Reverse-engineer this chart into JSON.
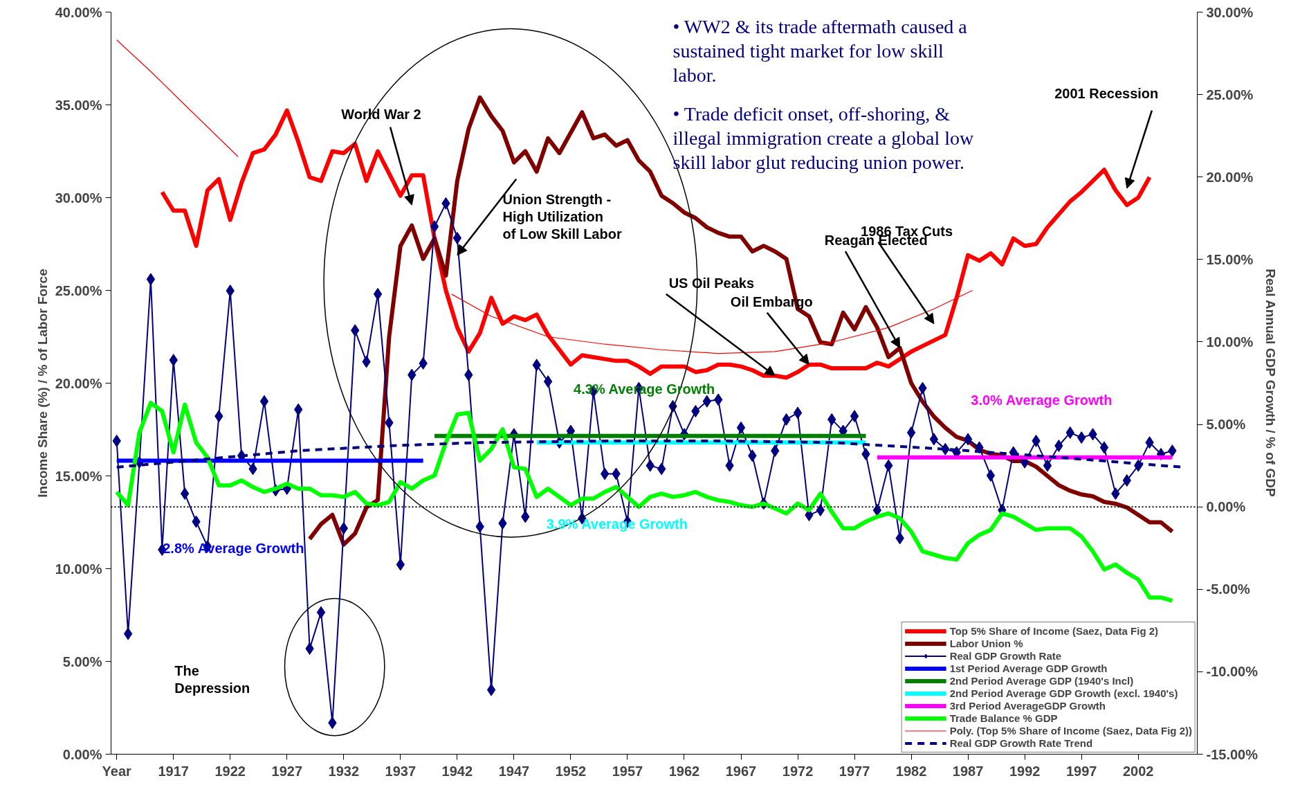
{
  "chart_data": {
    "type": "line",
    "ylabel": "Income Share (%) / % of Labor Force",
    "y2label": "Real Annual GDP Growth / % of GDP",
    "x": [
      1912,
      1913,
      1914,
      1915,
      1916,
      1917,
      1918,
      1919,
      1920,
      1921,
      1922,
      1923,
      1924,
      1925,
      1926,
      1927,
      1928,
      1929,
      1930,
      1931,
      1932,
      1933,
      1934,
      1935,
      1936,
      1937,
      1938,
      1939,
      1940,
      1941,
      1942,
      1943,
      1944,
      1945,
      1946,
      1947,
      1948,
      1949,
      1950,
      1951,
      1952,
      1953,
      1954,
      1955,
      1956,
      1957,
      1958,
      1959,
      1960,
      1961,
      1962,
      1963,
      1964,
      1965,
      1966,
      1967,
      1968,
      1969,
      1970,
      1971,
      1972,
      1973,
      1974,
      1975,
      1976,
      1977,
      1978,
      1979,
      1980,
      1981,
      1982,
      1983,
      1984,
      1985,
      1986,
      1987,
      1988,
      1989,
      1990,
      1991,
      1992,
      1993,
      1994,
      1995,
      1996,
      1997,
      1998,
      1999,
      2000,
      2001,
      2002,
      2003,
      2004,
      2005
    ],
    "xlim": [
      1911.5,
      2007.2
    ],
    "xticks": [
      {
        "value": 1912,
        "label": "Year"
      },
      1917,
      1922,
      1927,
      1932,
      1937,
      1942,
      1947,
      1952,
      1957,
      1962,
      1967,
      1972,
      1977,
      1982,
      1987,
      1992,
      1997,
      2002
    ],
    "ylim": [
      0,
      40
    ],
    "yticks": [
      {
        "value": 0,
        "label": "0.00%"
      },
      {
        "value": 5,
        "label": "5.00%"
      },
      {
        "value": 10,
        "label": "10.00%"
      },
      {
        "value": 15,
        "label": "15.00%"
      },
      {
        "value": 20,
        "label": "20.00%"
      },
      {
        "value": 25,
        "label": "25.00%"
      },
      {
        "value": 30,
        "label": "30.00%"
      },
      {
        "value": 35,
        "label": "35.00%"
      },
      {
        "value": 40,
        "label": "40.00%"
      }
    ],
    "y2lim": [
      -15,
      30
    ],
    "y2ticks": [
      {
        "value": -15,
        "label": "-15.00%"
      },
      {
        "value": -10,
        "label": "-10.00%"
      },
      {
        "value": -5,
        "label": "-5.00%"
      },
      {
        "value": 0,
        "label": "0.00%"
      },
      {
        "value": 5,
        "label": "5.00%"
      },
      {
        "value": 10,
        "label": "10.00%"
      },
      {
        "value": 15,
        "label": "15.00%"
      },
      {
        "value": 20,
        "label": "20.00%"
      },
      {
        "value": 25,
        "label": "25.00%"
      },
      {
        "value": 30,
        "label": "30.00%"
      }
    ],
    "grid": false,
    "legend": "bottom right",
    "series": [
      {
        "name": "Top 5% Share of Income (Saez, Data Fig 2)",
        "color": "#ff0000",
        "values": [
          null,
          null,
          null,
          null,
          30.3,
          29.3,
          29.3,
          27.4,
          30.4,
          31.0,
          28.8,
          30.8,
          32.4,
          32.6,
          33.4,
          34.7,
          33.0,
          31.1,
          30.9,
          32.5,
          32.4,
          32.9,
          30.9,
          32.5,
          31.3,
          30.1,
          31.2,
          31.2,
          27.8,
          25.0,
          23.0,
          21.7,
          22.7,
          24.6,
          23.2,
          23.6,
          23.4,
          23.7,
          22.6,
          21.8,
          21.0,
          21.5,
          21.4,
          21.3,
          21.2,
          21.2,
          20.9,
          20.5,
          20.9,
          20.9,
          20.9,
          20.6,
          20.7,
          21.0,
          21.0,
          20.9,
          20.7,
          20.4,
          20.4,
          20.3,
          20.6,
          21.0,
          21.0,
          20.8,
          20.8,
          20.8,
          20.8,
          21.1,
          20.9,
          21.3,
          21.7,
          22.0,
          22.3,
          22.6,
          24.6,
          26.9,
          26.6,
          27.0,
          26.4,
          27.8,
          27.4,
          27.5,
          28.4,
          29.1,
          29.8,
          30.3,
          30.9,
          31.5,
          30.4,
          29.6,
          30.0,
          31.1,
          null,
          null
        ]
      },
      {
        "name": "Labor Union %",
        "color": "#800000",
        "values": [
          null,
          null,
          null,
          null,
          null,
          null,
          null,
          null,
          null,
          null,
          null,
          null,
          null,
          null,
          null,
          null,
          null,
          11.6,
          12.4,
          12.9,
          11.3,
          11.9,
          13.3,
          13.7,
          22.5,
          27.4,
          28.5,
          26.7,
          27.8,
          25.8,
          30.9,
          33.7,
          35.4,
          34.4,
          33.6,
          31.9,
          32.5,
          31.4,
          33.2,
          32.4,
          33.5,
          34.6,
          33.2,
          33.4,
          32.8,
          33.1,
          32.0,
          31.4,
          30.1,
          29.7,
          29.2,
          28.9,
          28.4,
          28.1,
          27.9,
          27.9,
          27.1,
          27.4,
          27.1,
          26.7,
          24.0,
          23.6,
          22.2,
          22.1,
          23.8,
          22.9,
          24.1,
          23.0,
          21.4,
          21.9,
          20.0,
          19.0,
          18.2,
          17.6,
          17.1,
          16.9,
          16.4,
          16.2,
          16.1,
          15.8,
          15.8,
          15.5,
          15.0,
          14.5,
          14.2,
          14.0,
          13.9,
          13.6,
          13.5,
          13.3,
          12.9,
          12.5,
          12.5,
          12.0
        ]
      },
      {
        "name": "Real GDP Growth Rate",
        "color": "#000080",
        "axis": "y2",
        "marker": "diamond",
        "values": [
          4.0,
          -7.7,
          2.7,
          13.8,
          -2.6,
          8.9,
          0.8,
          -0.9,
          -2.4,
          5.5,
          13.1,
          3.1,
          2.3,
          6.4,
          1.0,
          1.1,
          5.9,
          -8.6,
          -6.4,
          -13.1,
          -1.3,
          10.7,
          8.8,
          12.9,
          5.1,
          -3.5,
          8.0,
          8.7,
          17.0,
          18.4,
          16.3,
          8.0,
          -1.2,
          -11.1,
          -1.0,
          4.4,
          -0.6,
          8.6,
          7.6,
          3.9,
          4.6,
          -0.7,
          7.0,
          2.0,
          2.0,
          -0.9,
          7.2,
          2.5,
          2.3,
          6.1,
          4.4,
          5.8,
          6.4,
          6.5,
          2.5,
          4.8,
          3.1,
          0.2,
          3.4,
          5.3,
          5.7,
          -0.5,
          -0.2,
          5.3,
          4.6,
          5.5,
          3.2,
          -0.2,
          2.5,
          -1.9,
          4.5,
          7.2,
          4.1,
          3.5,
          3.3,
          4.1,
          3.6,
          1.9,
          -0.2,
          3.3,
          2.7,
          4.0,
          2.5,
          3.7,
          4.5,
          4.2,
          4.4,
          3.6,
          0.8,
          1.6,
          2.5,
          3.9,
          3.2,
          3.4
        ]
      },
      {
        "name": "1st Period Average GDP Growth",
        "color": "#0000ff",
        "axis": "y2",
        "x": [
          1912,
          1939
        ],
        "values": [
          2.8,
          2.8
        ]
      },
      {
        "name": "2nd Period Average GDP (1940's Incl)",
        "color": "#008000",
        "axis": "y2",
        "x": [
          1940,
          1978
        ],
        "values": [
          4.3,
          4.3
        ]
      },
      {
        "name": "2nd Period Average GDP Growth (excl. 1940's)",
        "color": "#00ffff",
        "axis": "y2",
        "x": [
          1949,
          1978
        ],
        "values": [
          3.9,
          3.9
        ]
      },
      {
        "name": "3rd Period AverageGDP Growth",
        "color": "#ff00ff",
        "axis": "y2",
        "x": [
          1979,
          2005
        ],
        "values": [
          3.0,
          3.0
        ]
      },
      {
        "name": "Trade Balance % GDP",
        "color": "#00ff00",
        "axis": "y2",
        "values": [
          0.9,
          0.1,
          4.5,
          6.3,
          5.8,
          3.3,
          6.2,
          3.9,
          3.0,
          1.3,
          1.3,
          1.6,
          1.2,
          0.9,
          1.1,
          1.4,
          1.1,
          1.1,
          0.7,
          0.7,
          0.6,
          0.9,
          0.2,
          0.1,
          0.3,
          1.5,
          1.1,
          1.6,
          1.9,
          3.9,
          5.6,
          5.7,
          2.8,
          3.5,
          4.7,
          2.4,
          2.3,
          0.6,
          1.1,
          0.6,
          0.1,
          0.5,
          0.5,
          0.9,
          1.2,
          0.6,
          0.0,
          0.6,
          0.8,
          0.6,
          0.7,
          0.9,
          0.6,
          0.4,
          0.3,
          0.1,
          0.0,
          0.2,
          -0.1,
          -0.4,
          0.2,
          -0.2,
          0.8,
          -0.3,
          -1.3,
          -1.3,
          -0.9,
          -0.6,
          -0.4,
          -0.7,
          -1.5,
          -2.7,
          -2.9,
          -3.1,
          -3.2,
          -2.2,
          -1.7,
          -1.4,
          -0.4,
          -0.6,
          -1.0,
          -1.4,
          -1.3,
          -1.3,
          -1.3,
          -1.8,
          -2.7,
          -3.8,
          -3.5,
          -4.0,
          -4.4,
          -5.5,
          -5.5,
          -5.7
        ]
      },
      {
        "name": "Poly. (Top 5% Share of Income (Saez, Data Fig 2))",
        "color": "#ff0000",
        "x": [
          1912,
          1915,
          1918,
          1922.7,
          1930,
          1941.5,
          1945,
          1950,
          1955,
          1960,
          1965,
          1970,
          1975,
          1980,
          1984,
          1987.4
        ],
        "values": [
          38.5,
          36.8,
          35.0,
          32.2,
          null,
          24.8,
          23.6,
          22.5,
          22.1,
          21.8,
          21.6,
          21.7,
          22.2,
          23.0,
          24.0,
          25.0
        ]
      },
      {
        "name": "Real GDP Growth Rate Trend",
        "color": "#000080",
        "axis": "y2",
        "line_style": "dashed",
        "x": [
          1912,
          1920,
          1928,
          1936,
          1944,
          1956,
          1965,
          1975,
          1985,
          1995,
          2006
        ],
        "values": [
          2.4,
          2.9,
          3.4,
          3.7,
          3.9,
          4.0,
          4.0,
          3.9,
          3.5,
          3.0,
          2.4
        ]
      }
    ],
    "ref_lines": [
      {
        "axis": "y2",
        "value": 0,
        "color": "#000000",
        "line_style": "dotted"
      }
    ],
    "annotations": [
      "• WW2  & its trade aftermath caused a\nsustained tight market for low skill\nlabor.",
      "• Trade deficit onset, off-shoring, &\nillegal immigration create a global low\nskill labor glut reducing union power.",
      "World War 2",
      {
        "text": "Union Strength -\nHigh Utilization\nof Low Skill Labor",
        "x": 1942,
        "y": 26.9
      },
      {
        "text": "US Oil Peaks",
        "x": 1970,
        "y": 20.4
      },
      {
        "text": "Oil Embargo",
        "x": 1973,
        "y": 21.0
      },
      "1986 Tax Cuts",
      {
        "text": "Reagan Elected",
        "x": 1981,
        "y": 21.9
      },
      "2001 Recession",
      "The\nDepression",
      "2.8% Average Growth",
      "4.3% Average Growth",
      "3.9% Average Growth",
      "3.0% Average Growth"
    ]
  }
}
